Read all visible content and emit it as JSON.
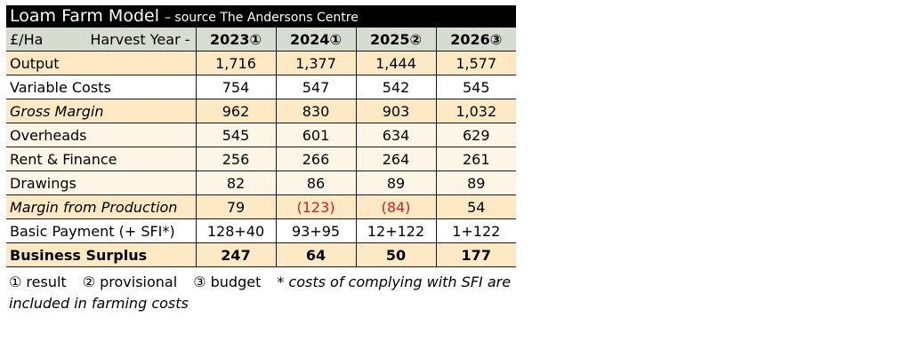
{
  "title": {
    "main": "Loam Farm Model",
    "sub": "– source The Andersons Centre"
  },
  "header": {
    "unit": "£/Ha",
    "harvest_year": "Harvest Year -",
    "years": [
      "2023①",
      "2024①",
      "2025②",
      "2026③"
    ]
  },
  "rows": [
    {
      "label": "Output",
      "values": [
        "1,716",
        "1,377",
        "1,444",
        "1,577"
      ]
    },
    {
      "label": "Variable Costs",
      "values": [
        "754",
        "547",
        "542",
        "545"
      ]
    },
    {
      "label": "Gross Margin",
      "values": [
        "962",
        "830",
        "903",
        "1,032"
      ]
    },
    {
      "label": "Overheads",
      "values": [
        "545",
        "601",
        "634",
        "629"
      ]
    },
    {
      "label": "Rent & Finance",
      "values": [
        "256",
        "266",
        "264",
        "261"
      ]
    },
    {
      "label": "Drawings",
      "values": [
        "82",
        "86",
        "89",
        "89"
      ]
    },
    {
      "label": "Margin from Production",
      "values": [
        "79",
        "(123)",
        "(84)",
        "54"
      ]
    },
    {
      "label": "Basic Payment (+ SFI*)",
      "values": [
        "128+40",
        "93+95",
        "12+122",
        "1+122"
      ]
    },
    {
      "label": "Business Surplus",
      "values": [
        "247",
        "64",
        "50",
        "177"
      ]
    }
  ],
  "footer": {
    "legend_1": "① result",
    "legend_2": "② provisional",
    "legend_3": "③ budget",
    "note_line1": "* costs of complying with SFI are",
    "note_line2": "included in farming costs"
  },
  "colors": {
    "title_bg": "#000000",
    "header_bg": "#d6dccf",
    "row_highlight": "#fde9c4",
    "row_light": "#fdf6e6",
    "negative": "#d21f1f"
  }
}
